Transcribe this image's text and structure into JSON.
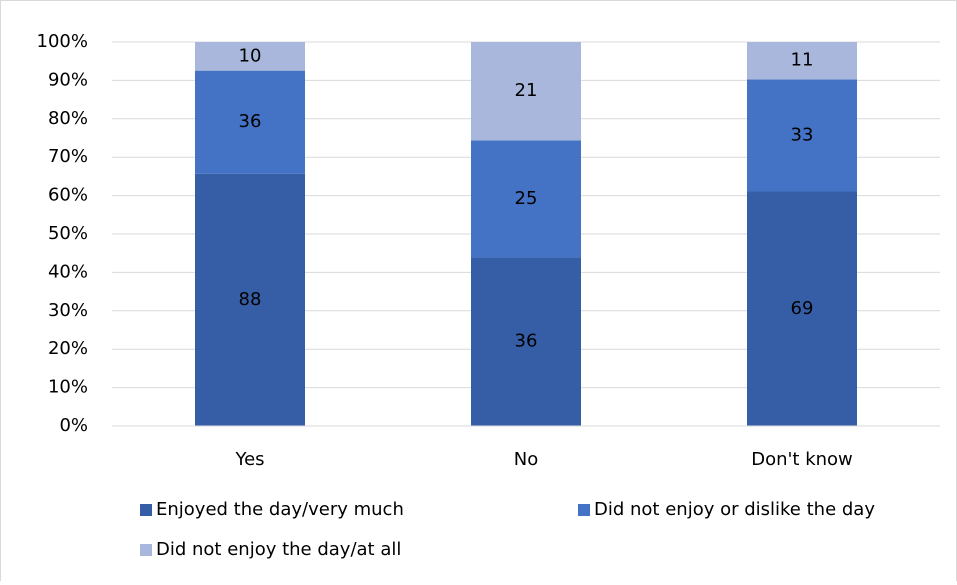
{
  "chart_data": {
    "type": "bar",
    "stacking": "percent",
    "categories": [
      "Yes",
      "No",
      "Don't know"
    ],
    "series": [
      {
        "name": "Enjoyed the day/very much",
        "color": "#365ea6",
        "values": [
          88,
          36,
          69
        ]
      },
      {
        "name": "Did not enjoy or dislike the day",
        "color": "#4472c4",
        "values": [
          36,
          25,
          33
        ]
      },
      {
        "name": "Did not enjoy the day/at all",
        "color": "#a9b7dc",
        "values": [
          10,
          21,
          11
        ]
      }
    ],
    "ylim": [
      0,
      100
    ],
    "yticks": [
      {
        "value": 0,
        "label": "0%"
      },
      {
        "value": 10,
        "label": "10%"
      },
      {
        "value": 20,
        "label": "20%"
      },
      {
        "value": 30,
        "label": "30%"
      },
      {
        "value": 40,
        "label": "40%"
      },
      {
        "value": 50,
        "label": "50%"
      },
      {
        "value": 60,
        "label": "60%"
      },
      {
        "value": 70,
        "label": "70%"
      },
      {
        "value": 80,
        "label": "80%"
      },
      {
        "value": 90,
        "label": "90%"
      },
      {
        "value": 100,
        "label": "100%"
      }
    ],
    "grid": true,
    "legend": "bottom"
  }
}
